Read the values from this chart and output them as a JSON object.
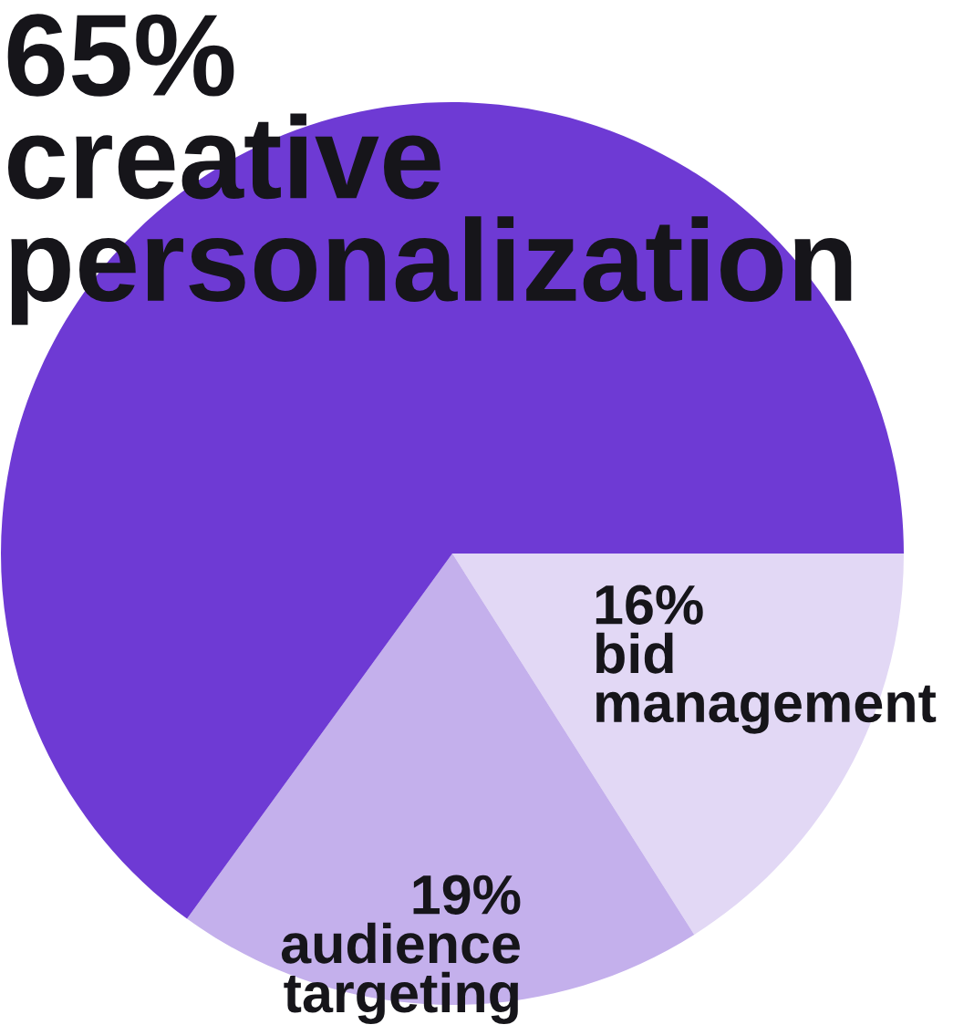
{
  "chart_data": {
    "type": "pie",
    "categories": [
      "bid management",
      "audience targeting",
      "creative personalization"
    ],
    "values": [
      16,
      19,
      65
    ],
    "colors": [
      "#e2d8f5",
      "#c4b0ec",
      "#6e3ad4"
    ],
    "value_labels": [
      "16%",
      "19%",
      "65%"
    ]
  }
}
